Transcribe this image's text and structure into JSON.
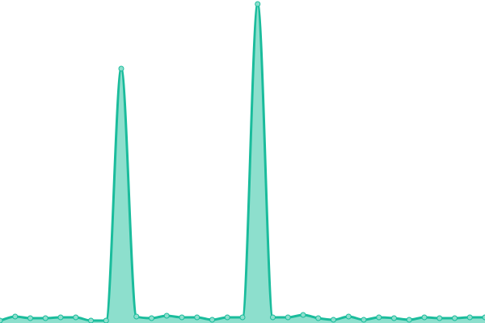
{
  "chart_data": {
    "type": "area",
    "x": [
      0,
      1,
      2,
      3,
      4,
      5,
      6,
      7,
      8,
      9,
      10,
      11,
      12,
      13,
      14,
      15,
      16,
      17,
      18,
      19,
      20,
      21,
      22,
      23,
      24,
      25,
      26,
      27,
      28,
      29,
      30,
      31,
      32
    ],
    "values": [
      3,
      8,
      6,
      6,
      7,
      7,
      3,
      3,
      315,
      8,
      6,
      9,
      7,
      7,
      4,
      7,
      7,
      395,
      7,
      7,
      10,
      6,
      4,
      8,
      4,
      7,
      6,
      4,
      7,
      6,
      6,
      7,
      7
    ],
    "ylim": [
      0,
      400
    ],
    "grid": false,
    "axes_visible": false,
    "colors": {
      "line": "#1abc9c",
      "fill": "#8ddfcd",
      "marker_fill": "#8ddfcd",
      "marker_stroke": "#1abc9c"
    }
  }
}
